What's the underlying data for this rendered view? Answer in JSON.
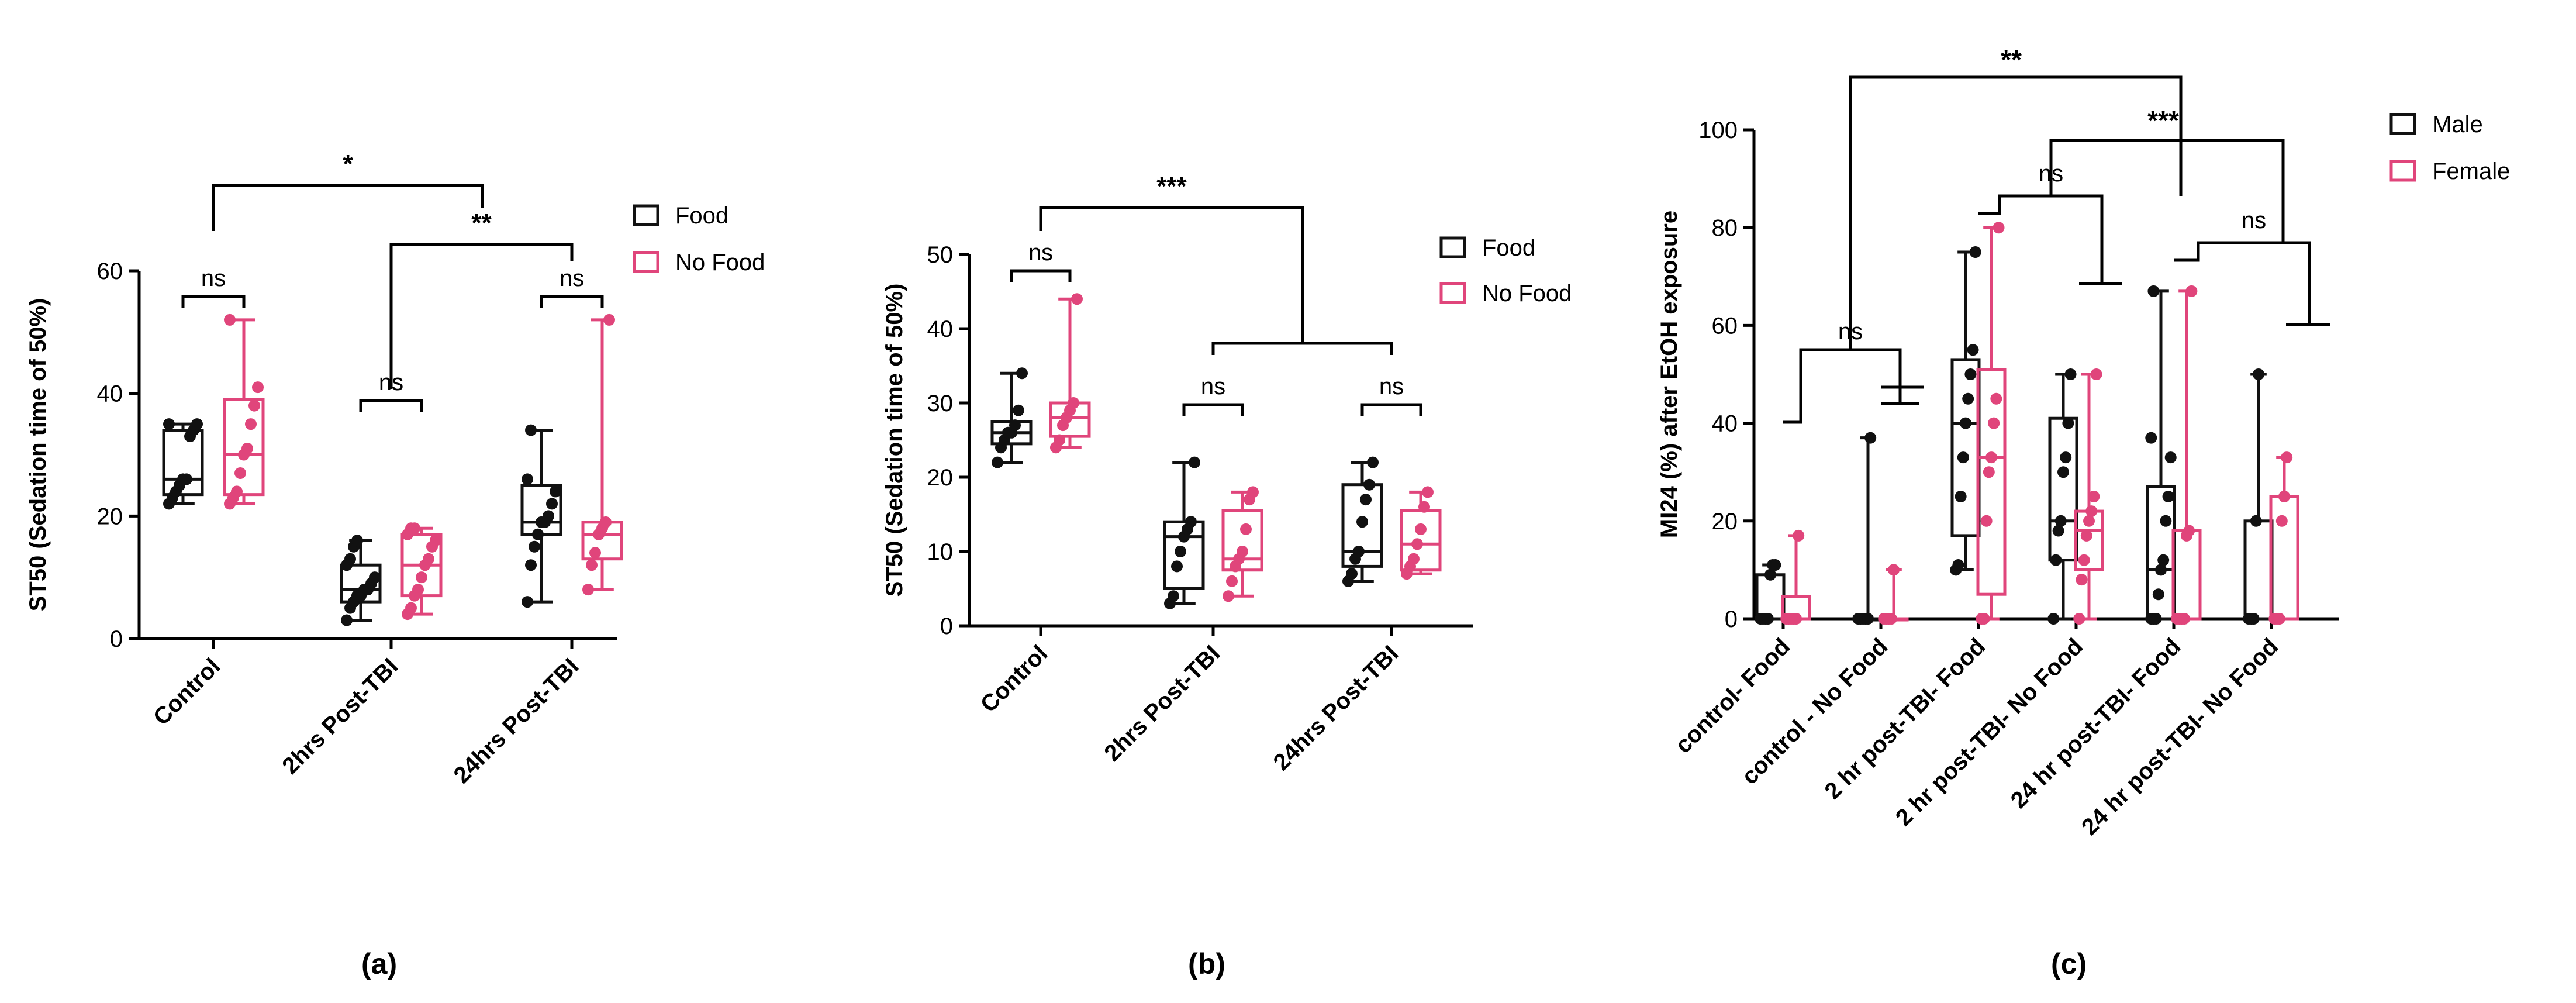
{
  "colors": {
    "food": "#111111",
    "nofood": "#e0457b",
    "axis": "#000000",
    "background": "#ffffff"
  },
  "chart_data": [
    {
      "id": "a",
      "type": "box",
      "panel_label": "(a)",
      "title": "",
      "ylabel": "ST50 (Sedation time of 50%)",
      "xlabel": "",
      "ylim": [
        0,
        60
      ],
      "yticks": [
        0,
        20,
        40,
        60
      ],
      "categories": [
        "Control",
        "2hrs Post-TBI",
        "24hrs Post-TBI"
      ],
      "legend": [
        "Food",
        "No Food"
      ],
      "series": [
        {
          "name": "Food",
          "color": "#111111",
          "boxes": [
            {
              "min": 22,
              "q1": 23.5,
              "median": 26,
              "q3": 34,
              "max": 35,
              "points": [
                22,
                23,
                24,
                25,
                26,
                26,
                33,
                34,
                35,
                35
              ]
            },
            {
              "min": 3,
              "q1": 6,
              "median": 8,
              "q3": 12,
              "max": 16,
              "points": [
                3,
                5,
                6,
                7,
                7,
                8,
                8,
                9,
                10,
                12,
                13,
                15,
                16
              ]
            },
            {
              "min": 6,
              "q1": 17,
              "median": 19,
              "q3": 25,
              "max": 34,
              "points": [
                6,
                12,
                15,
                17,
                19,
                19,
                20,
                22,
                24,
                26,
                34
              ]
            }
          ]
        },
        {
          "name": "No Food",
          "color": "#e0457b",
          "boxes": [
            {
              "min": 22,
              "q1": 23.5,
              "median": 30,
              "q3": 39,
              "max": 52,
              "points": [
                22,
                23,
                24,
                27,
                30,
                31,
                35,
                38,
                41,
                52
              ]
            },
            {
              "min": 4,
              "q1": 7,
              "median": 12,
              "q3": 17,
              "max": 18,
              "points": [
                4,
                5,
                7,
                8,
                10,
                12,
                13,
                15,
                16,
                17,
                18,
                18
              ]
            },
            {
              "min": 8,
              "q1": 13,
              "median": 17,
              "q3": 19,
              "max": 52,
              "points": [
                8,
                12,
                14,
                17,
                18,
                19,
                52
              ]
            }
          ]
        }
      ],
      "annotations": [
        {
          "label": "ns",
          "type": "pair",
          "group": 0
        },
        {
          "label": "ns",
          "type": "pair",
          "group": 1
        },
        {
          "label": "ns",
          "type": "pair",
          "group": 2
        },
        {
          "label": "*",
          "type": "between",
          "from": "Control",
          "to": "2hrs Post-TBI"
        },
        {
          "label": "**",
          "type": "between",
          "from": "2hrs Post-TBI",
          "to": "24hrs Post-TBI"
        }
      ]
    },
    {
      "id": "b",
      "type": "box",
      "panel_label": "(b)",
      "title": "",
      "ylabel": "ST50 (Sedation time of 50%)",
      "xlabel": "",
      "ylim": [
        0,
        50
      ],
      "yticks": [
        0,
        10,
        20,
        30,
        40,
        50
      ],
      "categories": [
        "Control",
        "2hrs Post-TBI",
        "24hrs Post-TBI"
      ],
      "legend": [
        "Food",
        "No Food"
      ],
      "series": [
        {
          "name": "Food",
          "color": "#111111",
          "boxes": [
            {
              "min": 22,
              "q1": 24.5,
              "median": 26,
              "q3": 27.5,
              "max": 34,
              "points": [
                22,
                24,
                25,
                26,
                26,
                27,
                29,
                34
              ]
            },
            {
              "min": 3,
              "q1": 5,
              "median": 12,
              "q3": 14,
              "max": 22,
              "points": [
                3,
                4,
                8,
                10,
                12,
                13,
                14,
                22
              ]
            },
            {
              "min": 6,
              "q1": 8,
              "median": 10,
              "q3": 19,
              "max": 22,
              "points": [
                6,
                7,
                9,
                10,
                14,
                17,
                19,
                22
              ]
            }
          ]
        },
        {
          "name": "No Food",
          "color": "#e0457b",
          "boxes": [
            {
              "min": 24,
              "q1": 25.5,
              "median": 28,
              "q3": 30,
              "max": 44,
              "points": [
                24,
                25,
                27,
                28,
                29,
                30,
                44
              ]
            },
            {
              "min": 4,
              "q1": 7.5,
              "median": 9,
              "q3": 15.5,
              "max": 18,
              "points": [
                4,
                6,
                8,
                9,
                10,
                13,
                17,
                18
              ]
            },
            {
              "min": 7,
              "q1": 7.5,
              "median": 11,
              "q3": 15.5,
              "max": 18,
              "points": [
                7,
                8,
                9,
                11,
                13,
                16,
                18
              ]
            }
          ]
        }
      ],
      "annotations": [
        {
          "label": "ns",
          "type": "pair",
          "group": 0
        },
        {
          "label": "ns",
          "type": "pair",
          "group": 1
        },
        {
          "label": "ns",
          "type": "pair",
          "group": 2
        },
        {
          "label": "***",
          "type": "between",
          "from": "Control",
          "to": "2hrs Post-TBI and 24hrs Post-TBI"
        }
      ]
    },
    {
      "id": "c",
      "type": "box",
      "panel_label": "(c)",
      "title": "",
      "ylabel": "MI24 (%) after EtOH exposure",
      "xlabel": "",
      "ylim": [
        0,
        100
      ],
      "yticks": [
        0,
        20,
        40,
        60,
        80,
        100
      ],
      "categories": [
        "control- Food",
        "control - No Food",
        "2 hr post-TBI- Food",
        "2 hr post-TBI- No Food",
        "24 hr post-TBI- Food",
        "24 hr post-TBI- No Food"
      ],
      "legend": [
        "Male",
        "Female"
      ],
      "series": [
        {
          "name": "Male",
          "color": "#111111",
          "boxes": [
            {
              "min": 0,
              "q1": 0,
              "median": 0,
              "q3": 9,
              "max": 11,
              "points": [
                0,
                0,
                0,
                0,
                9,
                11,
                11
              ]
            },
            {
              "min": 0,
              "q1": 0,
              "median": 0,
              "q3": 0,
              "max": 37,
              "points": [
                0,
                0,
                0,
                0,
                0,
                37
              ]
            },
            {
              "min": 10,
              "q1": 17,
              "median": 40,
              "q3": 53,
              "max": 75,
              "points": [
                10,
                11,
                25,
                33,
                40,
                45,
                50,
                55,
                75
              ]
            },
            {
              "min": 0,
              "q1": 12,
              "median": 20,
              "q3": 41,
              "max": 50,
              "points": [
                0,
                12,
                18,
                20,
                30,
                33,
                40,
                50
              ]
            },
            {
              "min": 0,
              "q1": 0,
              "median": 10,
              "q3": 27,
              "max": 67,
              "points": [
                0,
                0,
                0,
                5,
                10,
                12,
                20,
                25,
                33,
                37,
                67
              ]
            },
            {
              "min": 0,
              "q1": 0,
              "median": 0,
              "q3": 20,
              "max": 50,
              "points": [
                0,
                0,
                0,
                20,
                50
              ]
            }
          ]
        },
        {
          "name": "Female",
          "color": "#e0457b",
          "boxes": [
            {
              "min": 0,
              "q1": 0,
              "median": 0,
              "q3": 4.5,
              "max": 17,
              "points": [
                0,
                0,
                0,
                0,
                0,
                17
              ]
            },
            {
              "min": 0,
              "q1": 0,
              "median": 0,
              "q3": 0,
              "max": 10,
              "points": [
                0,
                0,
                0,
                0,
                10
              ]
            },
            {
              "min": 0,
              "q1": 5,
              "median": 33,
              "q3": 51,
              "max": 80,
              "points": [
                0,
                0,
                20,
                30,
                33,
                40,
                45,
                80
              ]
            },
            {
              "min": 0,
              "q1": 10,
              "median": 18,
              "q3": 22,
              "max": 50,
              "points": [
                0,
                8,
                12,
                17,
                20,
                22,
                25,
                50
              ]
            },
            {
              "min": 0,
              "q1": 0,
              "median": 0,
              "q3": 18,
              "max": 67,
              "points": [
                0,
                0,
                0,
                0,
                17,
                18,
                67
              ]
            },
            {
              "min": 0,
              "q1": 0,
              "median": 0,
              "q3": 25,
              "max": 33,
              "points": [
                0,
                0,
                0,
                20,
                25,
                33
              ]
            }
          ]
        }
      ],
      "annotations": [
        {
          "label": "ns",
          "type": "between",
          "from": "control- Food",
          "to": "control - No Food"
        },
        {
          "label": "ns",
          "type": "between",
          "from": "2 hr post-TBI- Food",
          "to": "2 hr post-TBI- No Food"
        },
        {
          "label": "ns",
          "type": "between",
          "from": "24 hr post-TBI- Food",
          "to": "24 hr post-TBI- No Food"
        },
        {
          "label": "**",
          "type": "between",
          "from": "control",
          "to": "2 hr post-TBI"
        },
        {
          "label": "***",
          "type": "between",
          "from": "2 hr post-TBI",
          "to": "24 hr post-TBI"
        }
      ]
    }
  ]
}
